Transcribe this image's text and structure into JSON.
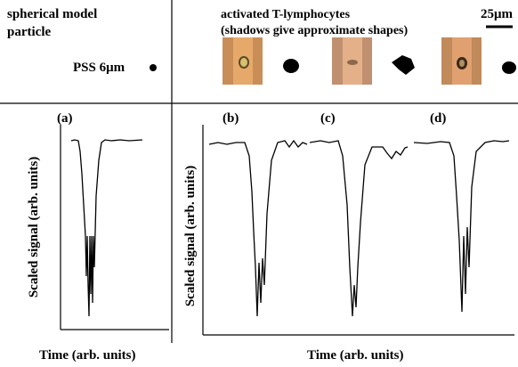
{
  "header": {
    "left_title": [
      "spherical model",
      "particle"
    ],
    "particle_label": "PSS 6μm",
    "right_title": [
      "activated T-lymphocytes",
      "(shadows give approximate shapes)"
    ],
    "scale_bar": "25μm"
  },
  "panels": [
    "(a)",
    "(b)",
    "(c)",
    "(d)"
  ],
  "axes": {
    "left": {
      "y_label": "Scaled signal (arb. units)",
      "x_label": "Time (arb. units)"
    },
    "right": {
      "y_label": "Scaled signal (arb. units)",
      "x_label": "Time (arb. units)"
    }
  }
}
